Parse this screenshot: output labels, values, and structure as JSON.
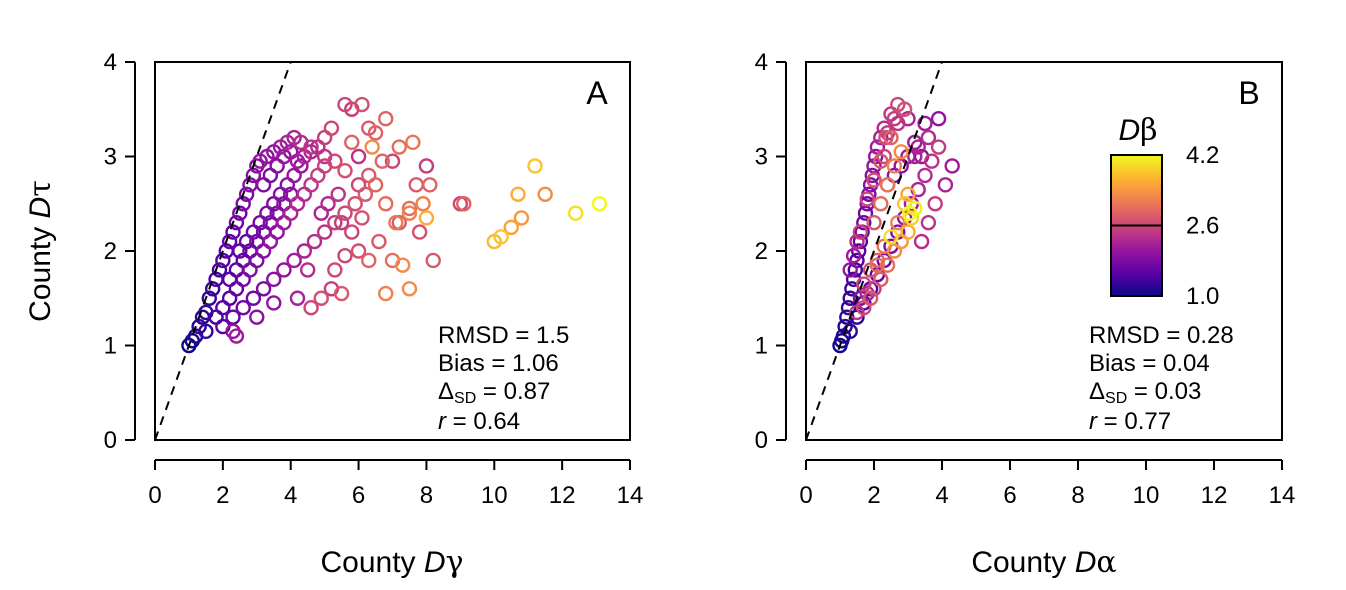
{
  "chart_data": [
    {
      "type": "scatter",
      "panel_label": "A",
      "xlabel_prefix": "County ",
      "xlabel_var": "D",
      "xlabel_greek": "γ",
      "ylabel_prefix": "County ",
      "ylabel_var": "D",
      "ylabel_greek": "τ",
      "xlim": [
        0,
        14
      ],
      "ylim": [
        0,
        4
      ],
      "xticks": [
        "0",
        "2",
        "4",
        "6",
        "8",
        "10",
        "12",
        "14"
      ],
      "yticks": [
        "0",
        "1",
        "2",
        "3",
        "4"
      ],
      "reference_line": "1:1 dashed",
      "stats": {
        "rmsd": "RMSD = 1.5",
        "bias": "Bias = 1.06",
        "delta_sym": "Δ",
        "delta_sub": "SD",
        "delta_val": " = 0.87",
        "r_sym": "r",
        "r_val": " = 0.64"
      },
      "points": [
        [
          1.0,
          1.0,
          1.0
        ],
        [
          1.1,
          1.05,
          1.1
        ],
        [
          1.2,
          1.1,
          1.1
        ],
        [
          1.3,
          1.2,
          1.2
        ],
        [
          1.4,
          1.3,
          1.2
        ],
        [
          1.5,
          1.35,
          1.3
        ],
        [
          1.6,
          1.5,
          1.3
        ],
        [
          1.7,
          1.6,
          1.3
        ],
        [
          1.8,
          1.7,
          1.4
        ],
        [
          1.9,
          1.8,
          1.4
        ],
        [
          2.0,
          1.9,
          1.5
        ],
        [
          2.1,
          2.0,
          1.5
        ],
        [
          2.2,
          2.1,
          1.6
        ],
        [
          2.3,
          2.2,
          1.6
        ],
        [
          2.4,
          2.3,
          1.7
        ],
        [
          2.5,
          2.4,
          1.7
        ],
        [
          2.6,
          2.5,
          1.8
        ],
        [
          2.7,
          2.6,
          1.8
        ],
        [
          2.8,
          2.7,
          1.9
        ],
        [
          2.9,
          2.8,
          1.9
        ],
        [
          3.0,
          2.9,
          1.9
        ],
        [
          3.1,
          2.95,
          2.0
        ],
        [
          3.3,
          3.0,
          2.0
        ],
        [
          3.5,
          3.05,
          2.0
        ],
        [
          3.7,
          3.1,
          2.1
        ],
        [
          3.9,
          3.15,
          2.2
        ],
        [
          4.1,
          3.2,
          2.2
        ],
        [
          4.3,
          3.15,
          2.3
        ],
        [
          4.6,
          3.1,
          2.4
        ],
        [
          5.0,
          3.2,
          2.5
        ],
        [
          5.2,
          3.3,
          2.6
        ],
        [
          5.6,
          3.55,
          2.6
        ],
        [
          5.8,
          3.5,
          2.5
        ],
        [
          6.1,
          3.55,
          2.7
        ],
        [
          6.3,
          3.3,
          2.8
        ],
        [
          6.5,
          3.25,
          2.9
        ],
        [
          6.8,
          3.4,
          2.9
        ],
        [
          7.2,
          3.1,
          3.0
        ],
        [
          7.6,
          3.15,
          3.1
        ],
        [
          6.0,
          3.0,
          2.4
        ],
        [
          1.5,
          1.15,
          1.3
        ],
        [
          1.8,
          1.3,
          1.4
        ],
        [
          2.0,
          1.4,
          1.5
        ],
        [
          2.2,
          1.5,
          1.5
        ],
        [
          2.4,
          1.6,
          1.6
        ],
        [
          2.6,
          1.7,
          1.7
        ],
        [
          2.8,
          1.8,
          1.8
        ],
        [
          3.0,
          1.9,
          1.8
        ],
        [
          3.2,
          2.0,
          1.9
        ],
        [
          3.4,
          2.1,
          2.0
        ],
        [
          3.6,
          2.2,
          2.0
        ],
        [
          3.8,
          2.3,
          2.1
        ],
        [
          4.0,
          2.4,
          2.2
        ],
        [
          4.2,
          2.5,
          2.3
        ],
        [
          4.4,
          2.6,
          2.3
        ],
        [
          4.6,
          2.7,
          2.4
        ],
        [
          4.8,
          2.8,
          2.5
        ],
        [
          5.0,
          2.9,
          2.5
        ],
        [
          5.3,
          2.95,
          2.6
        ],
        [
          5.6,
          2.85,
          2.7
        ],
        [
          2.0,
          1.2,
          1.5
        ],
        [
          2.3,
          1.3,
          1.6
        ],
        [
          2.6,
          1.4,
          1.7
        ],
        [
          2.9,
          1.5,
          1.7
        ],
        [
          3.2,
          1.6,
          1.8
        ],
        [
          3.5,
          1.7,
          1.9
        ],
        [
          3.8,
          1.8,
          2.0
        ],
        [
          4.1,
          1.9,
          2.1
        ],
        [
          4.4,
          2.0,
          2.2
        ],
        [
          4.7,
          2.1,
          2.3
        ],
        [
          5.0,
          2.2,
          2.4
        ],
        [
          5.3,
          2.3,
          2.5
        ],
        [
          5.6,
          2.4,
          2.6
        ],
        [
          5.9,
          2.5,
          2.7
        ],
        [
          6.2,
          2.6,
          2.8
        ],
        [
          6.5,
          2.7,
          2.9
        ],
        [
          6.8,
          2.5,
          3.0
        ],
        [
          7.1,
          2.3,
          3.1
        ],
        [
          7.5,
          2.4,
          3.2
        ],
        [
          7.9,
          2.5,
          3.2
        ],
        [
          2.3,
          1.15,
          2.0
        ],
        [
          2.4,
          1.1,
          2.1
        ],
        [
          3.0,
          1.3,
          1.9
        ],
        [
          3.5,
          1.45,
          2.0
        ],
        [
          4.2,
          1.5,
          2.2
        ],
        [
          4.6,
          1.4,
          2.6
        ],
        [
          4.9,
          1.5,
          2.7
        ],
        [
          5.5,
          1.55,
          2.8
        ],
        [
          6.3,
          1.9,
          2.9
        ],
        [
          6.8,
          1.55,
          3.2
        ],
        [
          7.5,
          1.6,
          3.3
        ],
        [
          7.0,
          1.9,
          3.0
        ],
        [
          8.2,
          1.9,
          2.8
        ],
        [
          4.5,
          1.8,
          2.3
        ],
        [
          5.2,
          1.6,
          2.5
        ],
        [
          5.6,
          1.95,
          2.6
        ],
        [
          6.0,
          2.0,
          2.7
        ],
        [
          6.6,
          2.1,
          2.8
        ],
        [
          7.3,
          1.85,
          3.3
        ],
        [
          8.0,
          2.35,
          3.6
        ],
        [
          7.7,
          2.7,
          2.8
        ],
        [
          8.1,
          2.7,
          2.9
        ],
        [
          8.0,
          2.9,
          2.5
        ],
        [
          9.0,
          2.5,
          2.6
        ],
        [
          9.1,
          2.5,
          2.9
        ],
        [
          10.0,
          2.1,
          3.7
        ],
        [
          10.2,
          2.15,
          3.8
        ],
        [
          10.5,
          2.25,
          3.5
        ],
        [
          10.8,
          2.35,
          3.4
        ],
        [
          10.7,
          2.6,
          3.6
        ],
        [
          11.2,
          2.9,
          3.8
        ],
        [
          11.5,
          2.6,
          3.3
        ],
        [
          12.4,
          2.4,
          4.0
        ],
        [
          13.1,
          2.5,
          4.2
        ],
        [
          5.8,
          3.15,
          2.9
        ],
        [
          6.4,
          3.1,
          3.3
        ],
        [
          7.0,
          2.95,
          2.6
        ],
        [
          7.2,
          2.3,
          2.8
        ],
        [
          7.5,
          2.45,
          3.0
        ],
        [
          7.8,
          2.2,
          2.7
        ],
        [
          3.2,
          2.7,
          1.8
        ],
        [
          3.4,
          2.8,
          1.8
        ],
        [
          3.6,
          2.9,
          1.9
        ],
        [
          3.8,
          3.0,
          2.0
        ],
        [
          4.0,
          3.05,
          2.0
        ],
        [
          4.2,
          2.95,
          2.1
        ],
        [
          4.4,
          3.0,
          2.2
        ],
        [
          4.6,
          3.05,
          2.3
        ],
        [
          4.8,
          3.1,
          2.3
        ],
        [
          5.0,
          3.0,
          2.4
        ],
        [
          2.5,
          2.0,
          1.6
        ],
        [
          2.7,
          2.1,
          1.6
        ],
        [
          2.9,
          2.2,
          1.7
        ],
        [
          3.1,
          2.3,
          1.7
        ],
        [
          3.3,
          2.4,
          1.8
        ],
        [
          3.5,
          2.5,
          1.8
        ],
        [
          3.7,
          2.6,
          1.9
        ],
        [
          3.9,
          2.7,
          1.9
        ],
        [
          4.1,
          2.8,
          2.0
        ],
        [
          4.3,
          2.9,
          2.0
        ],
        [
          2.2,
          1.7,
          1.5
        ],
        [
          2.4,
          1.8,
          1.5
        ],
        [
          2.6,
          1.9,
          1.6
        ],
        [
          2.8,
          2.0,
          1.6
        ],
        [
          3.0,
          2.1,
          1.7
        ],
        [
          3.2,
          2.2,
          1.7
        ],
        [
          3.4,
          2.3,
          1.8
        ],
        [
          3.6,
          2.4,
          1.8
        ],
        [
          3.8,
          2.5,
          1.9
        ],
        [
          4.0,
          2.6,
          1.9
        ],
        [
          5.5,
          2.3,
          2.5
        ],
        [
          5.8,
          2.2,
          2.6
        ],
        [
          6.1,
          2.35,
          2.7
        ],
        [
          5.4,
          2.6,
          2.4
        ],
        [
          5.1,
          2.5,
          2.3
        ],
        [
          4.9,
          2.4,
          2.2
        ],
        [
          6.0,
          2.7,
          2.6
        ],
        [
          6.3,
          2.8,
          2.8
        ],
        [
          6.7,
          2.95,
          2.9
        ],
        [
          5.3,
          1.8,
          2.6
        ]
      ]
    },
    {
      "type": "scatter",
      "panel_label": "B",
      "xlabel_prefix": "County ",
      "xlabel_var": "D",
      "xlabel_greek": "α",
      "xlim": [
        0,
        14
      ],
      "ylim": [
        0,
        4
      ],
      "xticks": [
        "0",
        "2",
        "4",
        "6",
        "8",
        "10",
        "12",
        "14"
      ],
      "yticks": [
        "0",
        "1",
        "2",
        "3",
        "4"
      ],
      "reference_line": "1:1 dashed",
      "stats": {
        "rmsd": "RMSD = 0.28",
        "bias": "Bias = 0.04",
        "delta_sym": "Δ",
        "delta_sub": "SD",
        "delta_val": " = 0.03",
        "r_sym": "r",
        "r_val": " = 0.77"
      },
      "colorbar": {
        "title_var": "D",
        "title_greek": "β",
        "ticks": [
          "4.2",
          "2.6",
          "1.0"
        ],
        "values": [
          4.2,
          2.6,
          1.0
        ],
        "stops": [
          "#0d0887",
          "#5c01a6",
          "#9c179e",
          "#cc4778",
          "#ed7953",
          "#fdb42f",
          "#f0f921"
        ]
      },
      "points": [
        [
          1.0,
          1.0,
          1.0
        ],
        [
          1.05,
          1.05,
          1.1
        ],
        [
          1.1,
          1.1,
          1.1
        ],
        [
          1.15,
          1.2,
          1.2
        ],
        [
          1.2,
          1.3,
          1.2
        ],
        [
          1.25,
          1.4,
          1.3
        ],
        [
          1.3,
          1.5,
          1.3
        ],
        [
          1.35,
          1.6,
          1.3
        ],
        [
          1.4,
          1.7,
          1.4
        ],
        [
          1.45,
          1.8,
          1.4
        ],
        [
          1.5,
          1.9,
          1.5
        ],
        [
          1.55,
          2.0,
          1.5
        ],
        [
          1.6,
          2.1,
          1.6
        ],
        [
          1.65,
          2.2,
          1.6
        ],
        [
          1.7,
          2.3,
          1.7
        ],
        [
          1.75,
          2.4,
          1.7
        ],
        [
          1.8,
          2.5,
          1.8
        ],
        [
          1.85,
          2.6,
          1.8
        ],
        [
          1.9,
          2.7,
          1.9
        ],
        [
          1.95,
          2.8,
          1.9
        ],
        [
          2.0,
          2.9,
          2.0
        ],
        [
          2.05,
          3.0,
          2.0
        ],
        [
          2.1,
          3.1,
          2.1
        ],
        [
          2.2,
          3.2,
          2.2
        ],
        [
          2.3,
          3.3,
          2.3
        ],
        [
          2.5,
          3.45,
          2.4
        ],
        [
          2.7,
          3.55,
          2.6
        ],
        [
          2.9,
          3.5,
          2.7
        ],
        [
          2.6,
          3.4,
          2.5
        ],
        [
          2.4,
          3.25,
          2.5
        ],
        [
          1.3,
          1.15,
          1.2
        ],
        [
          1.5,
          1.3,
          1.3
        ],
        [
          1.7,
          1.45,
          1.4
        ],
        [
          1.9,
          1.6,
          1.5
        ],
        [
          2.1,
          1.75,
          1.6
        ],
        [
          2.3,
          1.9,
          1.7
        ],
        [
          2.5,
          2.05,
          1.8
        ],
        [
          2.7,
          2.2,
          1.9
        ],
        [
          2.9,
          2.35,
          2.0
        ],
        [
          3.1,
          2.5,
          2.1
        ],
        [
          3.3,
          2.65,
          2.2
        ],
        [
          3.5,
          2.8,
          2.3
        ],
        [
          3.7,
          2.95,
          2.4
        ],
        [
          3.9,
          3.1,
          2.5
        ],
        [
          3.6,
          3.2,
          2.3
        ],
        [
          3.3,
          3.1,
          2.2
        ],
        [
          3.0,
          3.0,
          2.1
        ],
        [
          2.8,
          2.9,
          2.0
        ],
        [
          2.6,
          2.8,
          1.9
        ],
        [
          2.4,
          2.7,
          1.8
        ],
        [
          1.6,
          1.5,
          1.9
        ],
        [
          1.8,
          1.55,
          2.2
        ],
        [
          2.0,
          1.6,
          2.5
        ],
        [
          2.2,
          1.7,
          2.8
        ],
        [
          2.4,
          1.85,
          3.0
        ],
        [
          2.6,
          2.0,
          3.3
        ],
        [
          2.8,
          2.1,
          3.4
        ],
        [
          3.0,
          2.2,
          3.6
        ],
        [
          3.1,
          2.35,
          3.9
        ],
        [
          3.2,
          2.45,
          4.1
        ],
        [
          3.05,
          2.4,
          4.2
        ],
        [
          2.9,
          2.5,
          3.8
        ],
        [
          3.0,
          2.6,
          3.5
        ],
        [
          2.7,
          2.3,
          3.2
        ],
        [
          2.5,
          2.15,
          4.0
        ],
        [
          2.3,
          2.05,
          3.1
        ],
        [
          2.1,
          1.9,
          2.9
        ],
        [
          1.9,
          1.8,
          2.7
        ],
        [
          1.7,
          1.65,
          2.6
        ],
        [
          2.0,
          2.3,
          2.8
        ],
        [
          2.2,
          2.5,
          3.0
        ],
        [
          2.4,
          2.7,
          3.1
        ],
        [
          2.6,
          2.9,
          3.2
        ],
        [
          2.8,
          3.05,
          3.3
        ],
        [
          2.5,
          3.2,
          2.9
        ],
        [
          2.2,
          2.95,
          2.8
        ],
        [
          2.0,
          2.75,
          2.7
        ],
        [
          1.8,
          2.55,
          2.6
        ],
        [
          3.4,
          2.1,
          2.3
        ],
        [
          3.6,
          2.3,
          2.4
        ],
        [
          3.8,
          2.5,
          2.5
        ],
        [
          4.1,
          2.7,
          2.2
        ],
        [
          4.3,
          2.9,
          2.1
        ],
        [
          3.9,
          3.4,
          2.0
        ],
        [
          3.5,
          3.35,
          2.1
        ],
        [
          3.2,
          3.0,
          2.2
        ],
        [
          1.5,
          1.35,
          2.4
        ],
        [
          1.7,
          1.4,
          2.6
        ],
        [
          1.9,
          1.5,
          2.8
        ],
        [
          2.1,
          1.85,
          3.0
        ],
        [
          1.6,
          2.2,
          2.5
        ],
        [
          1.5,
          2.1,
          2.3
        ],
        [
          1.4,
          1.95,
          2.1
        ],
        [
          1.3,
          1.8,
          2.0
        ],
        [
          2.3,
          3.0,
          2.6
        ],
        [
          2.35,
          3.2,
          2.7
        ],
        [
          2.7,
          3.35,
          2.4
        ],
        [
          3.0,
          3.4,
          2.2
        ],
        [
          3.2,
          3.15,
          2.1
        ],
        [
          3.4,
          3.0,
          2.0
        ]
      ]
    }
  ]
}
